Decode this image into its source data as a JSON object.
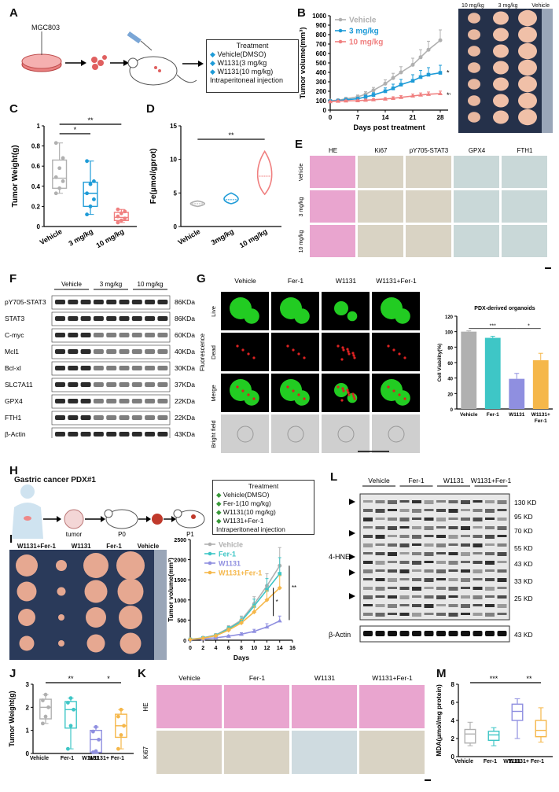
{
  "panel_letters": [
    "A",
    "B",
    "C",
    "D",
    "E",
    "F",
    "G",
    "H",
    "I",
    "J",
    "K",
    "L",
    "M"
  ],
  "colors": {
    "vehicle": "#b0b0b0",
    "mg3": "#1e9bd7",
    "mg10": "#f08080",
    "fer1": "#3ec6c6",
    "w1131": "#8f8fe0",
    "combo": "#f5b74a",
    "he": "#e9a5cf",
    "ihc": "#d9d3c4",
    "green": "#22cc22",
    "red": "#dd2222"
  },
  "icons": [
    "dish-icon",
    "cells-icon",
    "syringe-icon",
    "mouse-icon",
    "arrow-icon",
    "human-icon",
    "tumor-icon",
    "ruler-icon"
  ],
  "panel_a": {
    "cell_line": "MGC803",
    "treatment_title": "Treatment",
    "treatments": [
      "Vehicle(DMSO)",
      "W1131(3 mg/kg",
      "W1131(10 mg/kg)"
    ],
    "route": "Intraperitoneal injection"
  },
  "panel_b": {
    "photo_labels": [
      "10 mg/kg",
      "3 mg/kg",
      "Vehicle"
    ],
    "sig": [
      "*",
      "***"
    ]
  },
  "panel_e": {
    "columns": [
      "HE",
      "Ki67",
      "pY705-STAT3",
      "GPX4",
      "FTH1"
    ],
    "rows": [
      "Vehicle",
      "3 mg/kg",
      "10 mg/kg"
    ]
  },
  "panel_f": {
    "groups": [
      "Vehicle",
      "3 mg/kg",
      "10 mg/kg"
    ],
    "proteins": [
      "pY705-STAT3",
      "STAT3",
      "C-myc",
      "Mcl1",
      "Bcl-xl",
      "SLC7A11",
      "GPX4",
      "FTH1",
      "β-Actin"
    ],
    "sizes": [
      "86KDa",
      "86KDa",
      "60KDa",
      "40KDa",
      "30KDa",
      "37KDa",
      "22KDa",
      "22KDa",
      "43KDa"
    ]
  },
  "panel_g": {
    "columns": [
      "Vehicle",
      "Fer-1",
      "W1131",
      "W1131+Fer-1"
    ],
    "rows": [
      "Live",
      "Dead",
      "Merge",
      "Bright field"
    ],
    "side_label": "Fluorescence"
  },
  "panel_h": {
    "title": "Gastric cancer PDX#1",
    "steps": [
      "tumor",
      "P0",
      "P1"
    ],
    "treatment_title": "Treatment",
    "treatments": [
      "Vehicle(DMSO)",
      "Fer-1(10 mg/kg)",
      "W1131(10 mg/kg)",
      "W1131+Fer-1"
    ],
    "route": "Intraperitoneal injection"
  },
  "panel_i": {
    "photo_labels": [
      "W1131+Fer-1",
      "W1131",
      "Fer-1",
      "Vehicle"
    ],
    "sig": [
      "**",
      "*"
    ]
  },
  "panel_k": {
    "columns": [
      "Vehicle",
      "Fer-1",
      "W1131",
      "W1131+Fer-1"
    ],
    "rows": [
      "HE",
      "Ki67"
    ]
  },
  "panel_l": {
    "groups": [
      "Vehicle",
      "Fer-1",
      "W1131",
      "W1131+Fer-1"
    ],
    "proteins": [
      "4-HNE",
      "β-Actin"
    ],
    "markers": [
      "130 KD",
      "95 KD",
      "70 KD",
      "55 KD",
      "43 KD",
      "33 KD",
      "25 KD"
    ],
    "actin_marker": "43 KD"
  },
  "chart_data": [
    {
      "id": "B",
      "type": "line",
      "xlabel": "Days post treatment",
      "ylabel": "Tumor volume(mm³)",
      "xlim": [
        0,
        30
      ],
      "ylim": [
        0,
        1000
      ],
      "xticks": [
        0,
        7,
        14,
        21,
        28
      ],
      "yticks": [
        0,
        100,
        200,
        300,
        400,
        500,
        600,
        700,
        800,
        900,
        1000
      ],
      "legend": "top-left",
      "series": [
        {
          "name": "Vehicle",
          "color": "#b0b0b0",
          "marker": "circle",
          "x": [
            0,
            2,
            4,
            7,
            9,
            11,
            14,
            16,
            18,
            21,
            23,
            25,
            28
          ],
          "y": [
            100,
            105,
            120,
            140,
            170,
            210,
            280,
            340,
            400,
            480,
            560,
            640,
            740
          ],
          "err": [
            10,
            12,
            15,
            20,
            25,
            30,
            40,
            50,
            60,
            70,
            80,
            90,
            110
          ]
        },
        {
          "name": "3 mg/kg",
          "color": "#1e9bd7",
          "marker": "square",
          "x": [
            0,
            2,
            4,
            7,
            9,
            11,
            14,
            16,
            18,
            21,
            23,
            25,
            28
          ],
          "y": [
            95,
            100,
            110,
            120,
            140,
            160,
            200,
            230,
            270,
            310,
            350,
            375,
            395
          ],
          "err": [
            8,
            10,
            12,
            15,
            20,
            25,
            35,
            45,
            55,
            65,
            70,
            75,
            80
          ]
        },
        {
          "name": "10 mg/kg",
          "color": "#f08080",
          "marker": "triangle",
          "x": [
            0,
            2,
            4,
            7,
            9,
            11,
            14,
            16,
            18,
            21,
            23,
            25,
            28
          ],
          "y": [
            90,
            95,
            98,
            100,
            105,
            110,
            118,
            125,
            135,
            150,
            160,
            168,
            175
          ],
          "err": [
            6,
            6,
            7,
            8,
            10,
            12,
            14,
            16,
            18,
            20,
            22,
            24,
            26
          ]
        }
      ]
    },
    {
      "id": "C",
      "type": "box",
      "ylabel": "Tumor Weight(g)",
      "ylim": [
        0,
        1.0
      ],
      "yticks": [
        0,
        0.2,
        0.4,
        0.6,
        0.8,
        1.0
      ],
      "categories": [
        "Vehicle",
        "3 mg/kg",
        "10 mg/kg"
      ],
      "colors": [
        "#b0b0b0",
        "#1e9bd7",
        "#f08080"
      ],
      "boxes": [
        {
          "min": 0.33,
          "q1": 0.38,
          "median": 0.48,
          "q3": 0.66,
          "max": 0.83,
          "points": [
            0.33,
            0.38,
            0.45,
            0.49,
            0.58,
            0.68,
            0.83
          ]
        },
        {
          "min": 0.12,
          "q1": 0.2,
          "median": 0.33,
          "q3": 0.44,
          "max": 0.65,
          "points": [
            0.12,
            0.2,
            0.27,
            0.33,
            0.42,
            0.45,
            0.65
          ]
        },
        {
          "min": 0.04,
          "q1": 0.06,
          "median": 0.09,
          "q3": 0.14,
          "max": 0.17,
          "points": [
            0.04,
            0.06,
            0.08,
            0.1,
            0.13,
            0.15,
            0.17
          ]
        }
      ],
      "sig": [
        {
          "from": 0,
          "to": 2,
          "label": "**"
        },
        {
          "from": 0,
          "to": 1,
          "label": "*"
        }
      ]
    },
    {
      "id": "D",
      "type": "violin",
      "ylabel": "Fe(μmol/gprot)",
      "ylim": [
        0,
        15
      ],
      "yticks": [
        0,
        5,
        10,
        15
      ],
      "categories": [
        "Vehicle",
        "3mg/kg",
        "10 mg/kg"
      ],
      "colors": [
        "#b0b0b0",
        "#1e9bd7",
        "#f08080"
      ],
      "violins": [
        {
          "min": 3.0,
          "median": 3.4,
          "max": 3.8
        },
        {
          "min": 3.4,
          "median": 4.0,
          "max": 5.0
        },
        {
          "min": 4.8,
          "median": 7.5,
          "max": 11.2
        }
      ],
      "sig": [
        {
          "from": 0,
          "to": 2,
          "label": "**"
        }
      ]
    },
    {
      "id": "G",
      "type": "bar",
      "title": "PDX-derived organoids",
      "ylabel": "Cell Viability(%)",
      "ylim": [
        0,
        120
      ],
      "yticks": [
        0,
        20,
        40,
        60,
        80,
        100,
        120
      ],
      "categories": [
        "Vehicle",
        "Fer-1",
        "W1131",
        "W1131+ Fer-1"
      ],
      "colors": [
        "#b0b0b0",
        "#3ec6c6",
        "#8f8fe0",
        "#f5b74a"
      ],
      "values": [
        100,
        92,
        39,
        63
      ],
      "err": [
        1,
        2,
        7,
        9
      ],
      "sig": [
        {
          "from": 0,
          "to": 2,
          "label": "***"
        },
        {
          "from": 2,
          "to": 3,
          "label": "*"
        }
      ]
    },
    {
      "id": "I",
      "type": "line",
      "xlabel": "Days",
      "ylabel": "Tumor volume(mm³)",
      "xlim": [
        0,
        16
      ],
      "ylim": [
        0,
        2500
      ],
      "xticks": [
        0,
        2,
        4,
        6,
        8,
        10,
        12,
        14,
        16
      ],
      "yticks": [
        0,
        500,
        1000,
        1500,
        2000,
        2500
      ],
      "legend": "top-left",
      "series": [
        {
          "name": "Vehicle",
          "color": "#b0b0b0",
          "marker": "circle",
          "x": [
            0,
            2,
            4,
            6,
            8,
            10,
            12,
            14
          ],
          "y": [
            20,
            60,
            130,
            300,
            500,
            900,
            1350,
            1850
          ],
          "err": [
            5,
            10,
            30,
            60,
            100,
            180,
            300,
            450
          ]
        },
        {
          "name": "Fer-1",
          "color": "#3ec6c6",
          "marker": "square",
          "x": [
            0,
            2,
            4,
            6,
            8,
            10,
            12,
            14
          ],
          "y": [
            20,
            55,
            120,
            280,
            470,
            850,
            1250,
            1650
          ],
          "err": [
            5,
            10,
            30,
            60,
            100,
            170,
            280,
            400
          ]
        },
        {
          "name": "W1131",
          "color": "#8f8fe0",
          "marker": "triangle",
          "x": [
            0,
            2,
            4,
            6,
            8,
            10,
            12,
            14
          ],
          "y": [
            15,
            30,
            60,
            100,
            150,
            220,
            330,
            480
          ],
          "err": [
            3,
            6,
            15,
            25,
            35,
            50,
            80,
            120
          ]
        },
        {
          "name": "W1131+Fer-1",
          "color": "#f5b74a",
          "marker": "diamond",
          "x": [
            0,
            2,
            4,
            6,
            8,
            10,
            12,
            14
          ],
          "y": [
            18,
            50,
            110,
            250,
            430,
            700,
            1000,
            1300
          ],
          "err": [
            5,
            10,
            25,
            50,
            90,
            150,
            230,
            300
          ]
        }
      ],
      "sig": [
        "**",
        "*"
      ]
    },
    {
      "id": "J",
      "type": "box",
      "ylabel": "Tumor Weight(g)",
      "ylim": [
        0,
        3
      ],
      "yticks": [
        0,
        1,
        2,
        3
      ],
      "categories": [
        "Vehicle",
        "Fer-1",
        "W1131",
        "W1131+ Fer-1"
      ],
      "colors": [
        "#b0b0b0",
        "#3ec6c6",
        "#8f8fe0",
        "#f5b74a"
      ],
      "boxes": [
        {
          "min": 1.3,
          "q1": 1.5,
          "median": 2.0,
          "q3": 2.35,
          "max": 2.55,
          "points": [
            1.3,
            1.6,
            2.0,
            2.3,
            2.55
          ]
        },
        {
          "min": 0.2,
          "q1": 1.1,
          "median": 1.9,
          "q3": 2.25,
          "max": 2.4,
          "points": [
            0.2,
            1.2,
            1.9,
            2.2,
            2.4
          ]
        },
        {
          "min": 0.0,
          "q1": 0.05,
          "median": 0.6,
          "q3": 1.0,
          "max": 1.15,
          "points": [
            0.05,
            0.1,
            0.6,
            0.95,
            1.15
          ]
        },
        {
          "min": 0.2,
          "q1": 0.7,
          "median": 1.2,
          "q3": 1.7,
          "max": 1.9,
          "points": [
            0.2,
            0.8,
            1.2,
            1.6,
            1.9
          ]
        }
      ],
      "sig": [
        {
          "from": 0,
          "to": 2,
          "label": "**"
        },
        {
          "from": 2,
          "to": 3,
          "label": "*"
        }
      ]
    },
    {
      "id": "M",
      "type": "box",
      "ylabel": "MDA(μmol/mg protein)",
      "ylim": [
        0,
        8
      ],
      "yticks": [
        0,
        2,
        4,
        6,
        8
      ],
      "categories": [
        "Vehicle",
        "Fer-1",
        "W1131",
        "W1131+ Fer-1"
      ],
      "colors": [
        "#b0b0b0",
        "#3ec6c6",
        "#8f8fe0",
        "#f5b74a"
      ],
      "boxes": [
        {
          "min": 1.2,
          "q1": 1.5,
          "median": 2.5,
          "q3": 3.0,
          "max": 3.8,
          "points": []
        },
        {
          "min": 1.2,
          "q1": 1.8,
          "median": 2.4,
          "q3": 2.8,
          "max": 3.2,
          "points": []
        },
        {
          "min": 2.0,
          "q1": 4.0,
          "median": 5.0,
          "q3": 5.8,
          "max": 6.4,
          "points": []
        },
        {
          "min": 1.6,
          "q1": 2.2,
          "median": 2.9,
          "q3": 4.0,
          "max": 5.4,
          "points": []
        }
      ],
      "sig": [
        {
          "from": 0,
          "to": 2,
          "label": "***"
        },
        {
          "from": 2,
          "to": 3,
          "label": "**"
        }
      ]
    }
  ]
}
